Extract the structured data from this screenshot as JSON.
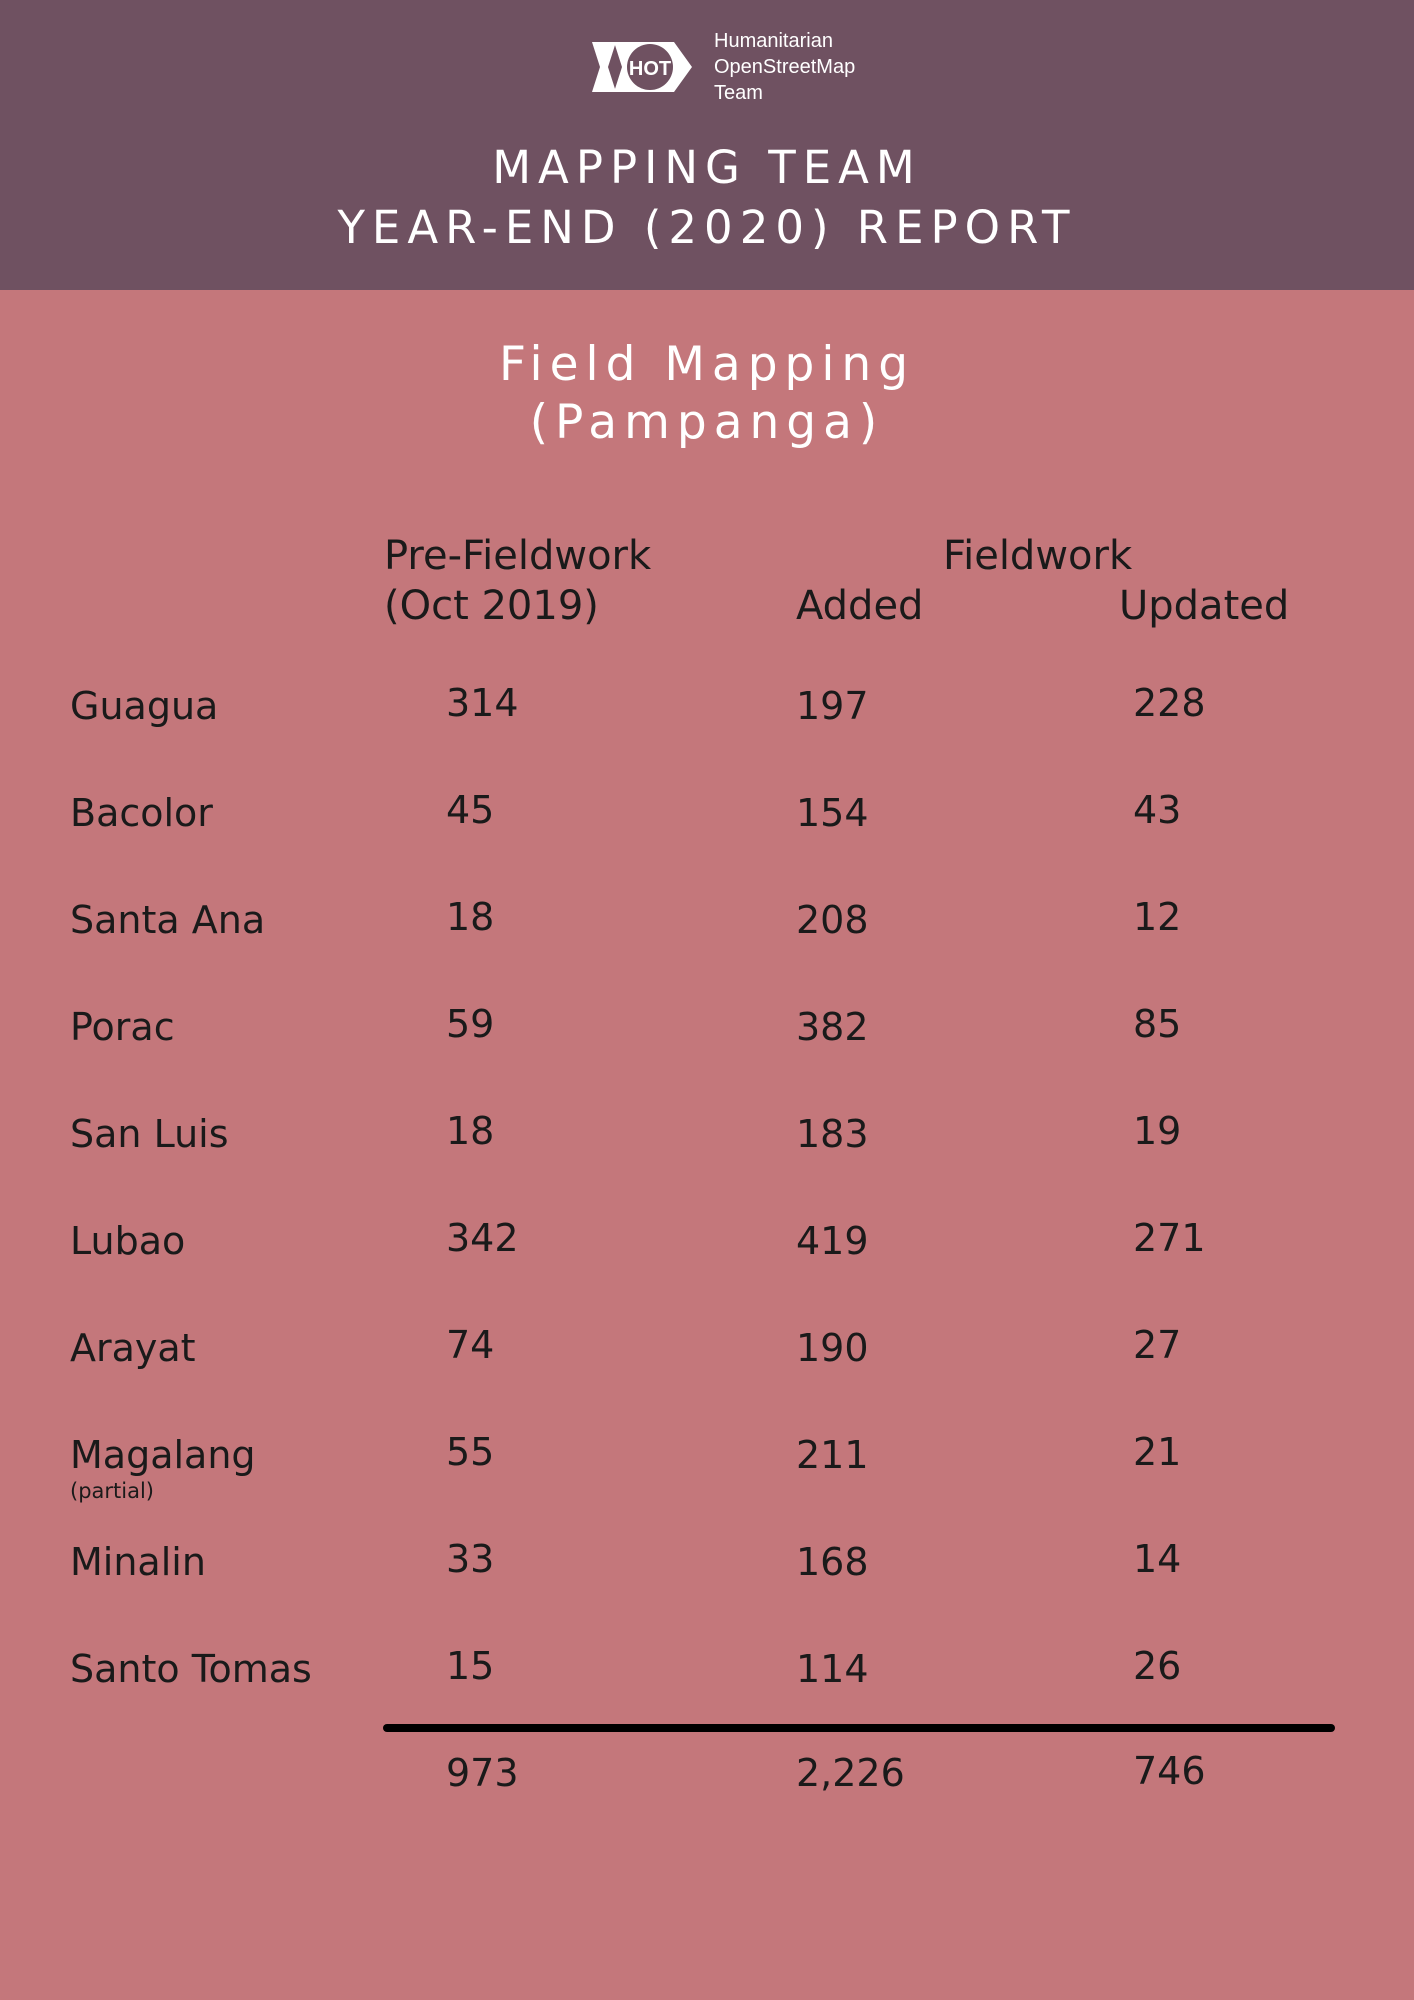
{
  "header": {
    "logo": {
      "mark_text": "HOT",
      "org_lines": [
        "Humanitarian",
        "OpenStreetMap",
        "Team"
      ]
    },
    "title_line_1": "MAPPING TEAM",
    "title_line_2": "YEAR-END (2020) REPORT"
  },
  "section": {
    "title_line_1": "Field Mapping",
    "title_line_2": "(Pampanga)"
  },
  "table": {
    "headers": {
      "pre_fieldwork_line_1": "Pre-Fieldwork",
      "pre_fieldwork_line_2": "(Oct 2019)",
      "fieldwork": "Fieldwork",
      "added": "Added",
      "updated": "Updated"
    },
    "rows": [
      {
        "name": "Guagua",
        "note": "",
        "pre": "314",
        "added": "197",
        "updated": "228"
      },
      {
        "name": "Bacolor",
        "note": "",
        "pre": "45",
        "added": "154",
        "updated": "43"
      },
      {
        "name": "Santa Ana",
        "note": "",
        "pre": "18",
        "added": "208",
        "updated": "12"
      },
      {
        "name": "Porac",
        "note": "",
        "pre": "59",
        "added": "382",
        "updated": "85"
      },
      {
        "name": "San Luis",
        "note": "",
        "pre": "18",
        "added": "183",
        "updated": "19"
      },
      {
        "name": "Lubao",
        "note": "",
        "pre": "342",
        "added": "419",
        "updated": "271"
      },
      {
        "name": "Arayat",
        "note": "",
        "pre": "74",
        "added": "190",
        "updated": "27"
      },
      {
        "name": "Magalang",
        "note": "(partial)",
        "pre": "55",
        "added": "211",
        "updated": "21"
      },
      {
        "name": "Minalin",
        "note": "",
        "pre": "33",
        "added": "168",
        "updated": "14"
      },
      {
        "name": "Santo Tomas",
        "note": "",
        "pre": "15",
        "added": "114",
        "updated": "26"
      }
    ],
    "totals": {
      "pre": "973",
      "added": "2,226",
      "updated": "746"
    }
  }
}
